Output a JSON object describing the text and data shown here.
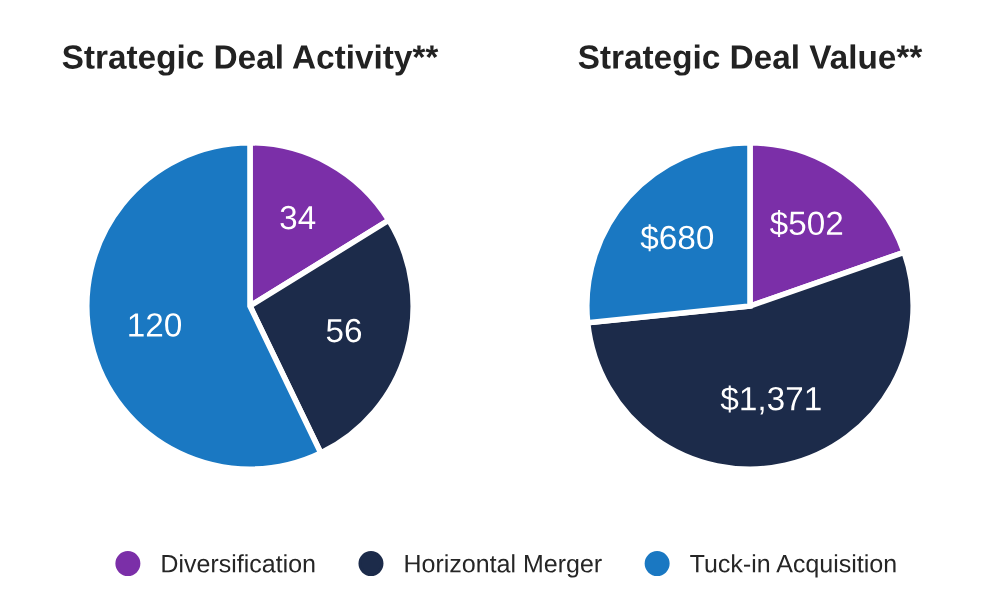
{
  "chart_data": [
    {
      "type": "pie",
      "title": "Strategic Deal Activity**",
      "categories": [
        "Diversification",
        "Horizontal Merger",
        "Tuck-in Acquisition"
      ],
      "values": [
        34,
        56,
        120
      ],
      "colors": [
        "#7b2fa8",
        "#1c2b4a",
        "#1a78c2"
      ],
      "data_labels": true,
      "legend": "bottom"
    },
    {
      "type": "pie",
      "title": "Strategic Deal Value**",
      "categories": [
        null,
        null,
        null
      ],
      "values": [
        502,
        1371,
        680
      ],
      "colors": [
        "#7b2fa8",
        "#1c2b4a",
        "#1a78c2"
      ],
      "value_labels": [
        "$502",
        "$1,371",
        "$680"
      ]
    }
  ]
}
